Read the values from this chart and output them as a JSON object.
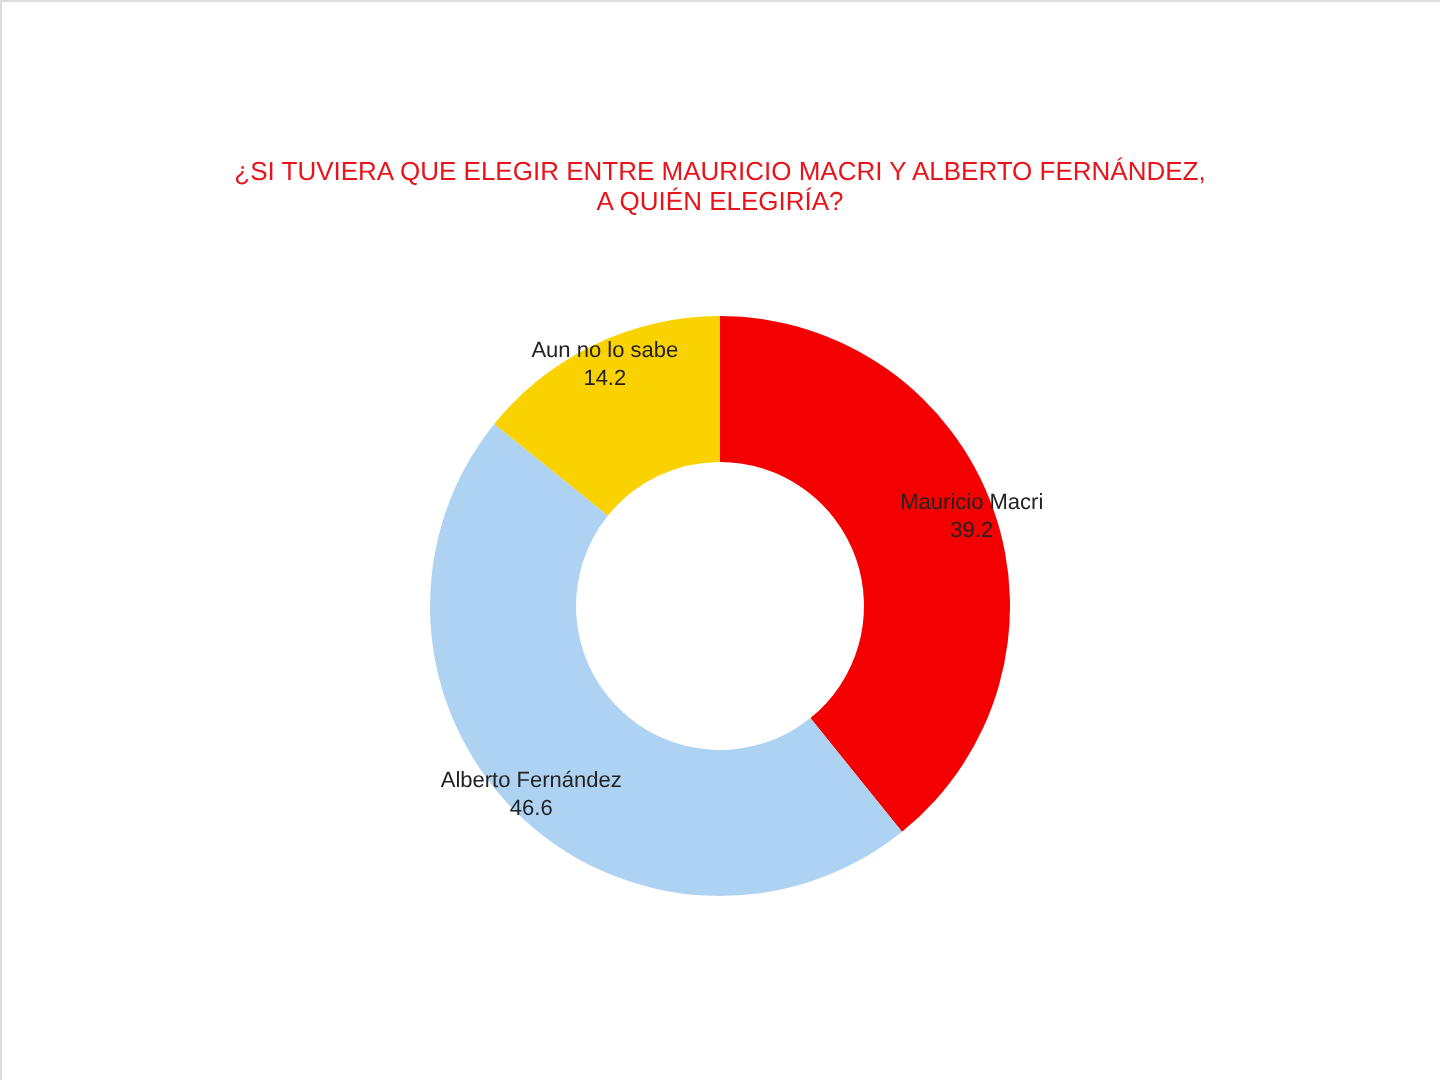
{
  "chart_data": {
    "type": "donut",
    "title": "¿SI TUVIERA QUE ELEGIR ENTRE MAURICIO MACRI Y ALBERTO FERNÁNDEZ,\nA QUIÉN ELEGIRÍA?",
    "categories": [
      "Mauricio Macri",
      "Alberto Fernández",
      "Aun no lo sabe"
    ],
    "values": [
      39.2,
      46.6,
      14.2
    ],
    "colors": [
      "#f50000",
      "#aed3f2",
      "#fad200"
    ],
    "data_labels": true
  }
}
